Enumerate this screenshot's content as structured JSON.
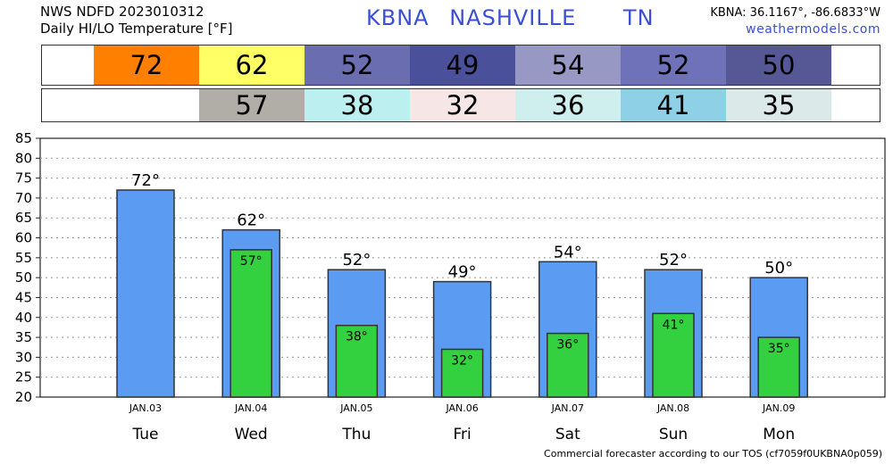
{
  "header": {
    "line1": "NWS NDFD 2023010312",
    "line2": "Daily HI/LO Temperature [°F]",
    "station": "KBNA",
    "city": "NASHVILLE",
    "state": "TN",
    "coords": "KBNA: 36.1167°, -86.6833°W",
    "site": "weathermodels.com"
  },
  "footer": "Commercial forecaster according to our TOS (cf7059f0UKBNA0p059)",
  "hi_strip": {
    "values": [
      "72",
      "62",
      "52",
      "49",
      "54",
      "52",
      "50"
    ],
    "colors": [
      "#ff7f00",
      "#ffff66",
      "#6a6eb0",
      "#4a509a",
      "#9898c4",
      "#6f72b8",
      "#565896"
    ]
  },
  "lo_strip": {
    "values": [
      "57",
      "38",
      "32",
      "36",
      "41",
      "35"
    ],
    "colors": [
      "#b0aea6",
      "#bcefef",
      "#f7e6e6",
      "#cfeeee",
      "#8ed0e6",
      "#dbe9e9"
    ]
  },
  "chart_data": {
    "type": "bar",
    "categories": [
      "JAN.03",
      "JAN.04",
      "JAN.05",
      "JAN.06",
      "JAN.07",
      "JAN.08",
      "JAN.09"
    ],
    "days": [
      "Tue",
      "Wed",
      "Thu",
      "Fri",
      "Sat",
      "Sun",
      "Mon"
    ],
    "series": [
      {
        "values": [
          72,
          62,
          52,
          49,
          54,
          52,
          50
        ],
        "color": "#5b9cf2"
      },
      {
        "values": [
          null,
          57,
          38,
          32,
          36,
          41,
          35
        ],
        "color": "#33d13f"
      }
    ],
    "hi_labels": [
      "72°",
      "62°",
      "52°",
      "49°",
      "54°",
      "52°",
      "50°"
    ],
    "lo_labels": [
      "",
      "57°",
      "38°",
      "32°",
      "36°",
      "41°",
      "35°"
    ],
    "yticks": [
      "20",
      "25",
      "30",
      "35",
      "40",
      "45",
      "50",
      "55",
      "60",
      "65",
      "70",
      "75",
      "80",
      "85"
    ],
    "ylim": [
      20,
      85
    ],
    "grid": true
  }
}
